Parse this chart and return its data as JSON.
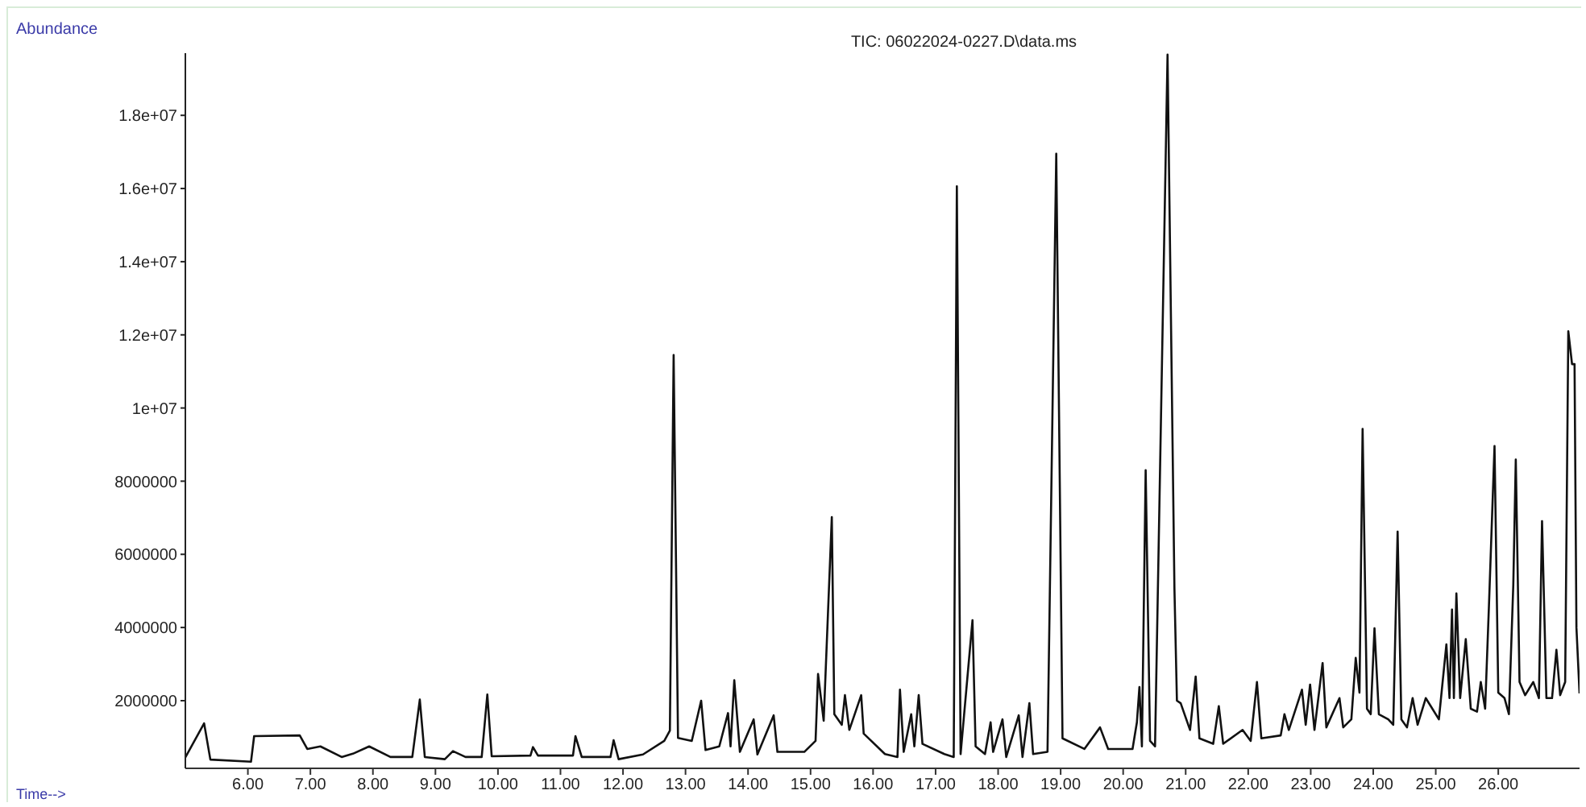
{
  "chart_data": {
    "type": "line",
    "title": "TIC: 06022024-0227.D\\data.ms",
    "xlabel": "Time-->",
    "ylabel": "Abundance",
    "xlim": [
      5.0,
      27.3
    ],
    "xticks": [
      {
        "value": 6,
        "label": "6.00"
      },
      {
        "value": 7,
        "label": "7.00"
      },
      {
        "value": 8,
        "label": "8.00"
      },
      {
        "value": 9,
        "label": "9.00"
      },
      {
        "value": 10,
        "label": "10.00"
      },
      {
        "value": 11,
        "label": "11.00"
      },
      {
        "value": 12,
        "label": "12.00"
      },
      {
        "value": 13,
        "label": "13.00"
      },
      {
        "value": 14,
        "label": "14.00"
      },
      {
        "value": 15,
        "label": "15.00"
      },
      {
        "value": 16,
        "label": "16.00"
      },
      {
        "value": 17,
        "label": "17.00"
      },
      {
        "value": 18,
        "label": "18.00"
      },
      {
        "value": 19,
        "label": "19.00"
      },
      {
        "value": 20,
        "label": "20.00"
      },
      {
        "value": 21,
        "label": "21.00"
      },
      {
        "value": 22,
        "label": "22.00"
      },
      {
        "value": 23,
        "label": "23.00"
      },
      {
        "value": 24,
        "label": "24.00"
      },
      {
        "value": 25,
        "label": "25.00"
      },
      {
        "value": 26,
        "label": "26.00"
      }
    ],
    "ylim": [
      150000,
      19700000
    ],
    "yticks": [
      2000000,
      4000000,
      6000000,
      8000000,
      {
        "value": 10000000,
        "label": "1e+07"
      },
      {
        "value": 12000000,
        "label": "1.2e+07"
      },
      {
        "value": 14000000,
        "label": "1.4e+07"
      },
      {
        "value": 16000000,
        "label": "1.6e+07"
      },
      {
        "value": 18000000,
        "label": "1.8e+07"
      }
    ],
    "grid": false,
    "legend": false,
    "marker": "none",
    "line_style": "solid",
    "series": [
      {
        "color": "#111111",
        "x": [
          5.0,
          5.3,
          5.4,
          6.05,
          6.1,
          6.83,
          6.95,
          7.16,
          7.5,
          7.68,
          7.94,
          8.28,
          8.63,
          8.75,
          8.83,
          9.15,
          9.28,
          9.48,
          9.74,
          9.83,
          9.9,
          10.52,
          10.56,
          10.64,
          11.2,
          11.24,
          11.34,
          11.8,
          11.85,
          11.93,
          12.32,
          12.66,
          12.75,
          12.81,
          12.88,
          13.1,
          13.25,
          13.32,
          13.54,
          13.68,
          13.72,
          13.78,
          13.87,
          14.09,
          14.15,
          14.41,
          14.47,
          14.9,
          15.08,
          15.12,
          15.21,
          15.34,
          15.38,
          15.5,
          15.55,
          15.62,
          15.72,
          15.81,
          15.85,
          16.19,
          16.39,
          16.43,
          16.49,
          16.61,
          16.66,
          16.73,
          16.79,
          17.14,
          17.29,
          17.34,
          17.4,
          17.59,
          17.64,
          17.79,
          17.88,
          17.92,
          18.07,
          18.13,
          18.33,
          18.39,
          18.5,
          18.56,
          18.79,
          18.93,
          19.03,
          19.38,
          19.63,
          19.76,
          20.15,
          20.22,
          20.26,
          20.3,
          20.36,
          20.43,
          20.51,
          20.71,
          20.82,
          20.86,
          20.92,
          21.07,
          21.16,
          21.22,
          21.44,
          21.53,
          21.6,
          21.91,
          22.04,
          22.14,
          22.21,
          22.52,
          22.58,
          22.65,
          22.86,
          22.92,
          22.99,
          23.06,
          23.19,
          23.25,
          23.46,
          23.52,
          23.65,
          23.72,
          23.78,
          23.83,
          23.9,
          23.96,
          24.02,
          24.09,
          24.24,
          24.32,
          24.39,
          24.45,
          24.54,
          24.63,
          24.71,
          24.84,
          25.05,
          25.17,
          25.22,
          25.26,
          25.29,
          25.33,
          25.39,
          25.48,
          25.56,
          25.66,
          25.72,
          25.79,
          25.85,
          25.94,
          26.0,
          26.1,
          26.17,
          26.24,
          26.28,
          26.34,
          26.43,
          26.56,
          26.65,
          26.7,
          26.77,
          26.86,
          26.93,
          26.99,
          27.07,
          27.12,
          27.18,
          27.22,
          27.25,
          27.3
        ],
        "values": [
          450000,
          1380000,
          390000,
          330000,
          1030000,
          1050000,
          680000,
          750000,
          460000,
          550000,
          750000,
          460000,
          460000,
          2030000,
          460000,
          400000,
          620000,
          460000,
          460000,
          2170000,
          480000,
          500000,
          730000,
          500000,
          500000,
          1030000,
          460000,
          460000,
          920000,
          400000,
          530000,
          900000,
          1180000,
          11450000,
          980000,
          900000,
          2000000,
          650000,
          750000,
          1660000,
          750000,
          2560000,
          600000,
          1490000,
          530000,
          1600000,
          600000,
          600000,
          900000,
          2730000,
          1450000,
          7020000,
          1630000,
          1340000,
          2150000,
          1200000,
          1700000,
          2150000,
          1100000,
          540000,
          460000,
          2300000,
          600000,
          1630000,
          750000,
          2150000,
          820000,
          540000,
          460000,
          16060000,
          540000,
          4200000,
          750000,
          540000,
          1410000,
          600000,
          1490000,
          460000,
          1600000,
          460000,
          1930000,
          540000,
          600000,
          16950000,
          970000,
          680000,
          1270000,
          680000,
          680000,
          1410000,
          2370000,
          750000,
          8300000,
          900000,
          750000,
          19660000,
          5080000,
          2000000,
          1930000,
          1200000,
          2660000,
          970000,
          820000,
          1850000,
          820000,
          1200000,
          900000,
          2510000,
          970000,
          1050000,
          1630000,
          1200000,
          2300000,
          1340000,
          2440000,
          1200000,
          3030000,
          1270000,
          2070000,
          1270000,
          1490000,
          3170000,
          2220000,
          9430000,
          1780000,
          1630000,
          3980000,
          1630000,
          1490000,
          1340000,
          6620000,
          1490000,
          1270000,
          2070000,
          1340000,
          2070000,
          1490000,
          3540000,
          2070000,
          4490000,
          2070000,
          4930000,
          2070000,
          3680000,
          1780000,
          1700000,
          2510000,
          1780000,
          4560000,
          8960000,
          2220000,
          2070000,
          1630000,
          5150000,
          8590000,
          2510000,
          2150000,
          2510000,
          2070000,
          6910000,
          2070000,
          2070000,
          3390000,
          2150000,
          2510000,
          12100000,
          11200000,
          11200000,
          4000000,
          2200000
        ]
      }
    ]
  }
}
